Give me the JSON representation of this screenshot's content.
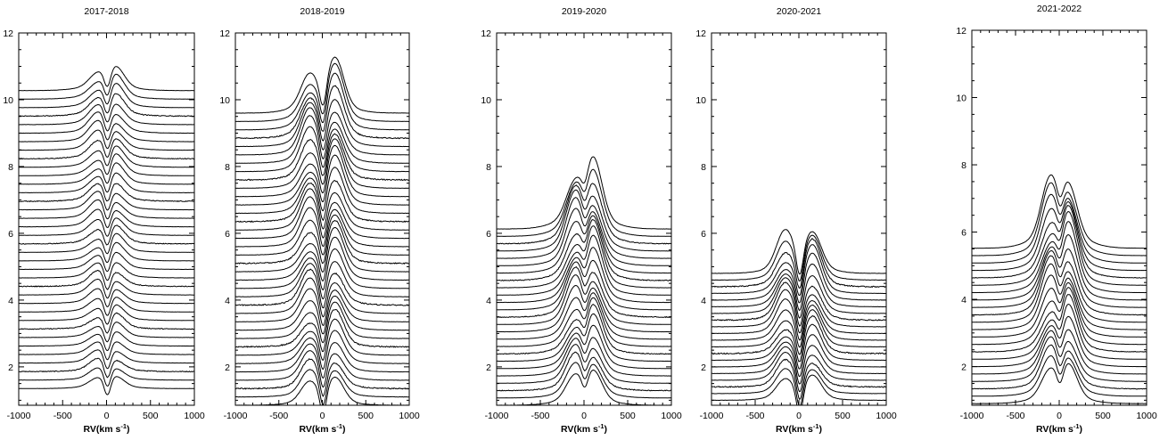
{
  "chart_data": [
    {
      "type": "line",
      "title": "2017-2018",
      "xlabel": "RV(km s",
      "xlabel_sup": "-1",
      "xlabel_close": ")",
      "xlim": [
        -1000,
        1000
      ],
      "ylim": [
        0.85,
        12.0
      ],
      "x_ticks": [
        -1000,
        -500,
        0,
        500,
        1000
      ],
      "y_ticks": [
        2,
        4,
        6,
        8,
        10,
        12
      ],
      "profile": "double-peaked emission with strong central absorption",
      "series_count": 36,
      "offset_start": 1.35,
      "offset_step": 0.255,
      "peak_height": 0.42,
      "peak_separation_kms": 105,
      "central_depth": 0.55,
      "noise": 0.006,
      "grid": false,
      "legend": "none"
    },
    {
      "type": "line",
      "title": "2018-2019",
      "xlabel": "RV(km s",
      "xlabel_sup": "-1",
      "xlabel_close": ")",
      "xlim": [
        -1000,
        1000
      ],
      "ylim": [
        0.85,
        12.0
      ],
      "x_ticks": [
        -1000,
        -500,
        0,
        500,
        1000
      ],
      "y_ticks": [
        2,
        4,
        6,
        8,
        10,
        12
      ],
      "profile": "double-peaked emission with strong central absorption",
      "series_count": 36,
      "offset_start": 0.85,
      "offset_step": 0.25,
      "peak_height": 1.0,
      "peak_separation_kms": 150,
      "central_depth": 0.8,
      "noise": 0.008,
      "grid": false,
      "legend": "none"
    },
    {
      "type": "line",
      "title": "2019-2020",
      "xlabel": "RV(km s",
      "xlabel_sup": "-1",
      "xlabel_close": ")",
      "xlim": [
        -1000,
        1000
      ],
      "ylim": [
        0.85,
        12.0
      ],
      "x_ticks": [
        -1000,
        -500,
        0,
        500,
        1000
      ],
      "y_ticks": [
        2,
        4,
        6,
        8,
        10,
        12
      ],
      "profile": "double-peaked emission with central absorption",
      "series_count": 25,
      "offset_start": 0.85,
      "offset_step": 0.22,
      "peak_height": 1.2,
      "peak_separation_kms": 110,
      "central_depth": 0.45,
      "noise": 0.006,
      "grid": false,
      "legend": "none"
    },
    {
      "type": "line",
      "title": "2020-2021",
      "xlabel": "RV(km s",
      "xlabel_sup": "-1",
      "xlabel_close": ")",
      "xlim": [
        -1000,
        1000
      ],
      "ylim": [
        0.85,
        12.0
      ],
      "x_ticks": [
        -1000,
        -500,
        0,
        500,
        1000
      ],
      "y_ticks": [
        2,
        4,
        6,
        8,
        10,
        12
      ],
      "profile": "double-peaked emission with deep central absorption",
      "series_count": 20,
      "offset_start": 1.0,
      "offset_step": 0.2,
      "peak_height": 0.9,
      "peak_separation_kms": 160,
      "central_depth": 0.85,
      "noise": 0.008,
      "grid": false,
      "legend": "none"
    },
    {
      "type": "line",
      "title": "2021-2022",
      "xlabel": "RV(km s",
      "xlabel_sup": "-1",
      "xlabel_close": ")",
      "xlim": [
        -1000,
        1000
      ],
      "ylim": [
        0.85,
        12.0
      ],
      "x_ticks": [
        -1000,
        -500,
        0,
        500,
        1000
      ],
      "y_ticks": [
        2,
        4,
        6,
        8,
        10,
        12
      ],
      "profile": "double-peaked emission with central absorption",
      "series_count": 22,
      "offset_start": 0.9,
      "offset_step": 0.22,
      "peak_height": 1.35,
      "peak_separation_kms": 110,
      "central_depth": 0.5,
      "noise": 0.004,
      "grid": false,
      "legend": "none"
    }
  ]
}
